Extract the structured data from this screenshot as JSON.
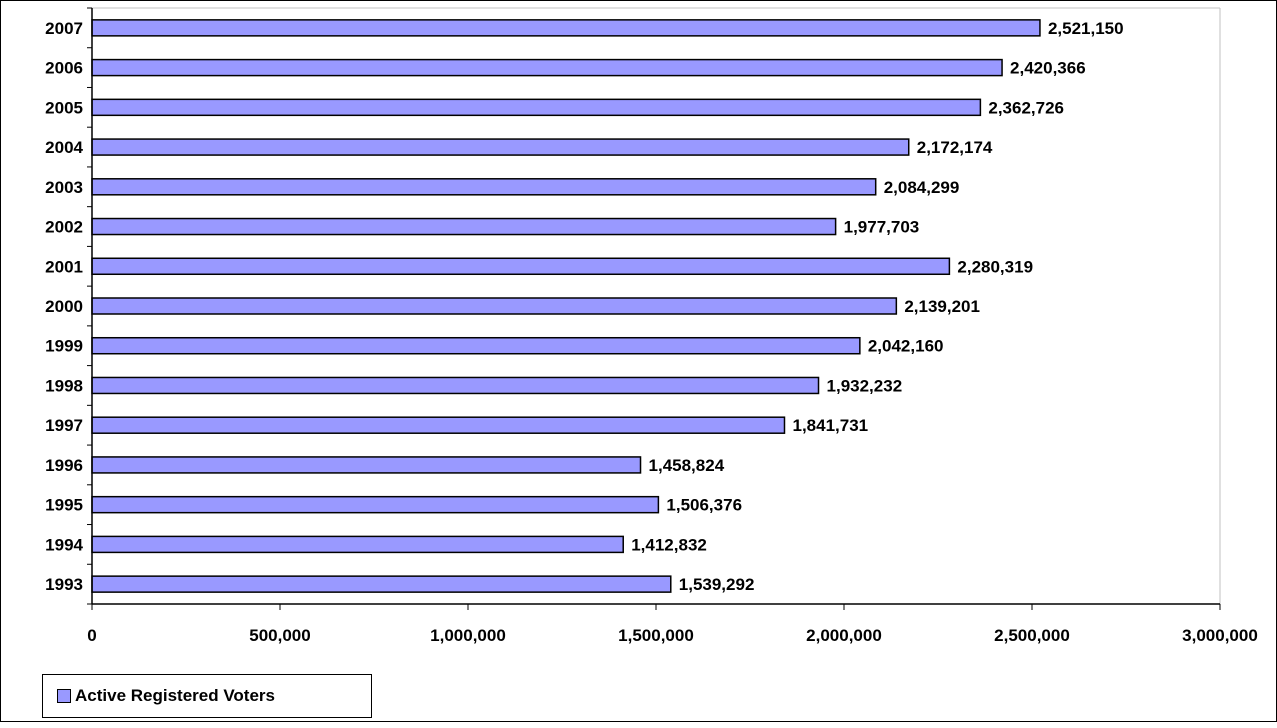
{
  "chart_data": {
    "type": "bar",
    "orientation": "horizontal",
    "categories": [
      "2007",
      "2006",
      "2005",
      "2004",
      "2003",
      "2002",
      "2001",
      "2000",
      "1999",
      "1998",
      "1997",
      "1996",
      "1995",
      "1994",
      "1993"
    ],
    "series": [
      {
        "name": "Active Registered Voters",
        "values": [
          2521150,
          2420366,
          2362726,
          2172174,
          2084299,
          1977703,
          2280319,
          2139201,
          2042160,
          1932232,
          1841731,
          1458824,
          1506376,
          1412832,
          1539292
        ],
        "value_labels": [
          "2,521,150",
          "2,420,366",
          "2,362,726",
          "2,172,174",
          "2,084,299",
          "1,977,703",
          "2,280,319",
          "2,139,201",
          "2,042,160",
          "1,932,232",
          "1,841,731",
          "1,458,824",
          "1,506,376",
          "1,412,832",
          "1,539,292"
        ]
      }
    ],
    "xlim": [
      0,
      3000000
    ],
    "xticks": [
      0,
      500000,
      1000000,
      1500000,
      2000000,
      2500000,
      3000000
    ],
    "xtick_labels": [
      "0",
      "500,000",
      "1,000,000",
      "1,500,000",
      "2,000,000",
      "2,500,000",
      "3,000,000"
    ],
    "title": "",
    "xlabel": "",
    "ylabel": "",
    "grid": false,
    "legend_position": "bottom-left",
    "colors": {
      "bar_fill": "#9999ff",
      "bar_stroke": "#000000",
      "axis": "#000000",
      "plot_border": "#c0c0c0",
      "text": "#000000"
    }
  },
  "legend": {
    "label": "Active Registered Voters"
  }
}
